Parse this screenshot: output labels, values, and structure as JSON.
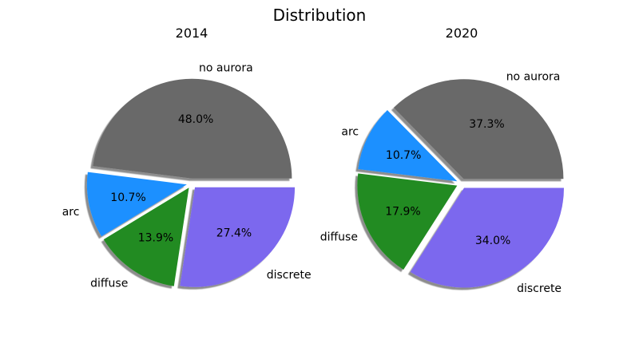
{
  "chart_data": {
    "type": "pie",
    "title": "Distribution",
    "colors": [
      "#696969",
      "#1e90ff",
      "#228b22",
      "#7b68ee"
    ],
    "charts": [
      {
        "title": "2014",
        "categories": [
          "no aurora",
          "arc",
          "diffuse",
          "discrete"
        ],
        "values": [
          48.0,
          10.7,
          13.9,
          27.4
        ],
        "labels": [
          "48.0%",
          "10.7%",
          "13.9%",
          "27.4%"
        ]
      },
      {
        "title": "2020",
        "categories": [
          "no aurora",
          "arc",
          "diffuse",
          "discrete"
        ],
        "values": [
          37.3,
          10.7,
          17.9,
          34.0
        ],
        "labels": [
          "37.3%",
          "10.7%",
          "17.9%",
          "34.0%"
        ]
      }
    ]
  }
}
